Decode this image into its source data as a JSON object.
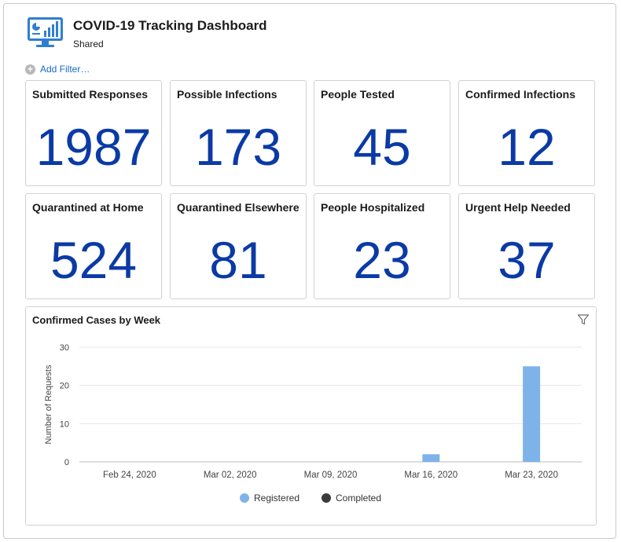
{
  "header": {
    "icon": "monitor-dashboard-icon",
    "title": "COVID-19 Tracking Dashboard",
    "subtitle": "Shared"
  },
  "filters": {
    "add_label": "Add Filter…",
    "icon": "plus-circle-icon"
  },
  "metrics": [
    {
      "label": "Submitted Responses",
      "value": "1987"
    },
    {
      "label": "Possible Infections",
      "value": "173"
    },
    {
      "label": "People Tested",
      "value": "45"
    },
    {
      "label": "Confirmed Infections",
      "value": "12"
    },
    {
      "label": "Quarantined at Home",
      "value": "524"
    },
    {
      "label": "Quarantined Elsewhere",
      "value": "81"
    },
    {
      "label": "People Hospitalized",
      "value": "23"
    },
    {
      "label": "Urgent Help Needed",
      "value": "37"
    }
  ],
  "colors": {
    "metric_value": "#0b3aa5",
    "registered": "#7eb3ea",
    "completed": "#3b3b3d"
  },
  "chart_panel": {
    "title": "Confirmed Cases by Week",
    "filter_icon": "funnel-icon"
  },
  "chart_data": {
    "type": "bar",
    "title": "Confirmed Cases by Week",
    "xlabel": "",
    "ylabel": "Number of Requests",
    "categories": [
      "Feb 24, 2020",
      "Mar 02, 2020",
      "Mar 09, 2020",
      "Mar 16, 2020",
      "Mar 23, 2020"
    ],
    "series": [
      {
        "name": "Registered",
        "values": [
          0,
          0,
          0,
          2,
          25
        ]
      },
      {
        "name": "Completed",
        "values": [
          0,
          0,
          0,
          0,
          0
        ]
      }
    ],
    "ylim": [
      0,
      30
    ],
    "yticks": [
      "0",
      "10",
      "20",
      "30"
    ],
    "grid": true,
    "legend_position": "bottom"
  }
}
